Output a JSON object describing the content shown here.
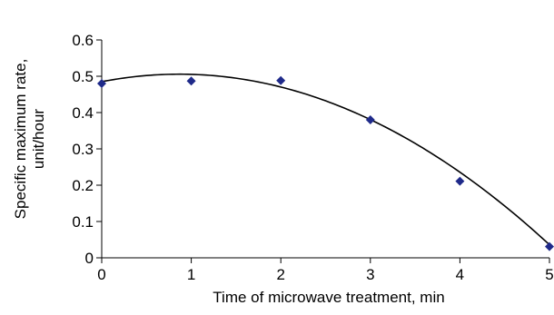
{
  "chart_data": {
    "type": "scatter",
    "title": "",
    "xlabel": "Time of microwave treatment, min",
    "ylabel": [
      "Specific maximum rate,",
      "unit/hour"
    ],
    "xlim": [
      0,
      5
    ],
    "ylim": [
      0,
      0.6
    ],
    "x_ticks": [
      "0",
      "1",
      "2",
      "3",
      "4",
      "5"
    ],
    "y_ticks": [
      "0",
      "0.1",
      "0.2",
      "0.3",
      "0.4",
      "0.5",
      "0.6"
    ],
    "grid": false,
    "legend": "none",
    "series": [
      {
        "kind": "points",
        "marker": "diamond",
        "color": "#1f2a8a",
        "x": [
          0,
          1,
          2,
          3,
          4,
          5
        ],
        "y": [
          0.48,
          0.487,
          0.488,
          0.38,
          0.211,
          0.031
        ]
      },
      {
        "kind": "trendline",
        "color": "#000000",
        "fit": "polynomial-2",
        "coefficients": [
          0.485,
          0.0477,
          -0.0275
        ]
      }
    ]
  }
}
